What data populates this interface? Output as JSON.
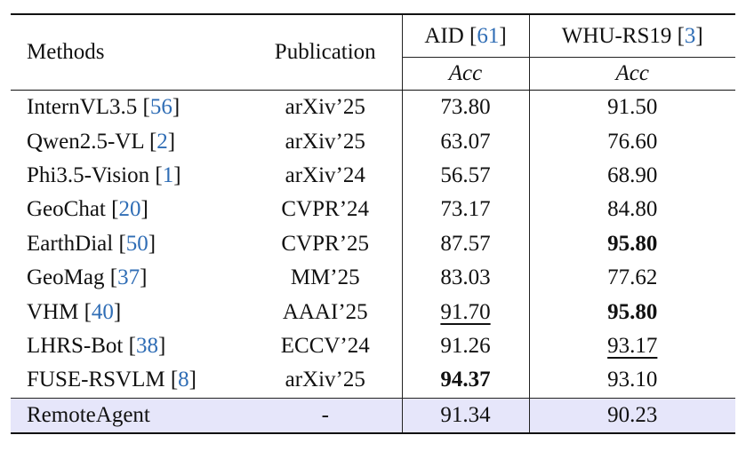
{
  "header": {
    "methods": "Methods",
    "publication": "Publication",
    "datasets": [
      {
        "name": "AID",
        "ref": "61",
        "metric": "Acc"
      },
      {
        "name": "WHU-RS19",
        "ref": "3",
        "metric": "Acc"
      }
    ]
  },
  "rows": [
    {
      "method": "InternVL3.5",
      "ref": "56",
      "pub": "arXiv’25",
      "aid": "73.80",
      "whu": "91.50"
    },
    {
      "method": "Qwen2.5-VL",
      "ref": "2",
      "pub": "arXiv’25",
      "aid": "63.07",
      "whu": "76.60"
    },
    {
      "method": "Phi3.5-Vision",
      "ref": "1",
      "pub": "arXiv’24",
      "aid": "56.57",
      "whu": "68.90"
    },
    {
      "method": "GeoChat",
      "ref": "20",
      "pub": "CVPR’24",
      "aid": "73.17",
      "whu": "84.80"
    },
    {
      "method": "EarthDial",
      "ref": "50",
      "pub": "CVPR’25",
      "aid": "87.57",
      "whu": "95.80"
    },
    {
      "method": "GeoMag",
      "ref": "37",
      "pub": "MM’25",
      "aid": "83.03",
      "whu": "77.62"
    },
    {
      "method": "VHM",
      "ref": "40",
      "pub": "AAAI’25",
      "aid": "91.70",
      "whu": "95.80"
    },
    {
      "method": "LHRS-Bot",
      "ref": "38",
      "pub": "ECCV’24",
      "aid": "91.26",
      "whu": "93.17"
    },
    {
      "method": "FUSE-RSVLM",
      "ref": "8",
      "pub": "arXiv’25",
      "aid": "94.37",
      "whu": "93.10"
    }
  ],
  "ours": {
    "method": "RemoteAgent",
    "pub": "-",
    "aid": "91.34",
    "whu": "90.23"
  },
  "styles": {
    "bold": [
      "8.aid",
      "4.whu",
      "6.whu"
    ],
    "underline": [
      "6.aid",
      "7.whu"
    ],
    "ref_color": "#2f6db5",
    "highlight_color": "#e6e6fa"
  }
}
